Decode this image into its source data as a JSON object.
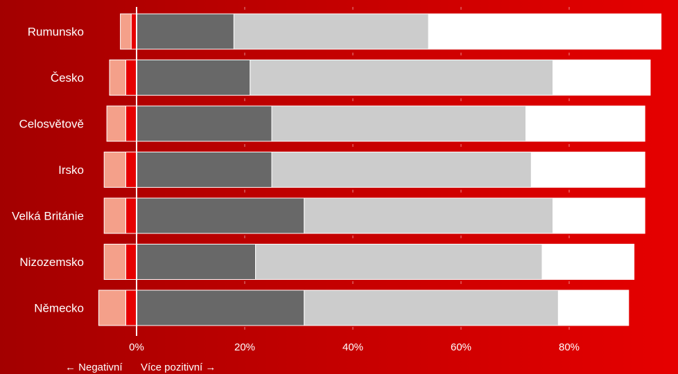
{
  "chart_data": {
    "type": "bar",
    "orientation": "horizontal",
    "stacked": true,
    "categories": [
      "Rumunsko",
      "Česko",
      "Celosvětově",
      "Irsko",
      "Velká Británie",
      "Nizozemsko",
      "Německo"
    ],
    "negative_series": [
      {
        "color": "#e60000",
        "values": [
          -1,
          -2,
          -2,
          -2,
          -2,
          -2,
          -2
        ]
      },
      {
        "color": "#f4a08a",
        "values": [
          -2,
          -3,
          -3.5,
          -4,
          -4,
          -4,
          -5
        ]
      }
    ],
    "positive_series": [
      {
        "color": "#686868",
        "values": [
          18,
          21,
          25,
          25,
          31,
          22,
          31
        ]
      },
      {
        "color": "#cccccc",
        "values": [
          36,
          56,
          47,
          48,
          46,
          53,
          47
        ]
      },
      {
        "color": "#ffffff",
        "values": [
          43,
          18,
          22,
          21,
          17,
          17,
          13
        ]
      }
    ],
    "x_ticks": [
      0,
      20,
      40,
      60,
      80
    ],
    "x_tick_labels": [
      "0%",
      "20%",
      "40%",
      "60%",
      "80%"
    ],
    "xlim": [
      -9,
      100
    ],
    "grid": "vertical-dashed",
    "negative_label": "← Negativní",
    "positive_label": "Více pozitivní →"
  }
}
